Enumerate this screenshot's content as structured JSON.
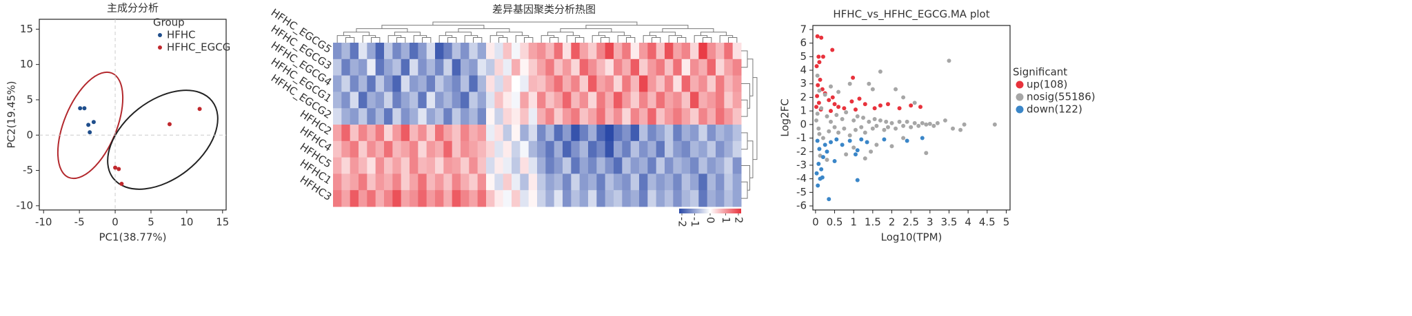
{
  "chart_data": [
    {
      "type": "scatter",
      "title": "主成分分析",
      "xlabel": "PC1(38.77%)",
      "ylabel": "PC2(19.45%)",
      "xlim": [
        -10.6,
        15.5
      ],
      "ylim": [
        -10.6,
        16.4
      ],
      "xticks": [
        -10,
        -5,
        0,
        5,
        10,
        15
      ],
      "yticks": [
        -10,
        -5,
        0,
        5,
        10,
        15
      ],
      "zero_lines": true,
      "legend": "upper right",
      "legend_title": "Group",
      "series": [
        {
          "name": "HFHC",
          "color": "#1f4e8c",
          "x": [
            -4.9,
            -4.3,
            -3.0,
            -3.75,
            -3.55
          ],
          "y": [
            3.8,
            3.8,
            1.85,
            1.45,
            0.4
          ]
        },
        {
          "name": "HFHC_EGCG",
          "color": "#c0282d",
          "x": [
            11.8,
            7.6,
            0.0,
            0.5,
            0.9
          ],
          "y": [
            3.7,
            1.55,
            -4.6,
            -4.8,
            -6.9
          ]
        }
      ]
    },
    {
      "type": "heatmap",
      "title": "差异基因聚类分析热图",
      "rows": [
        "HFHC_EGCG5",
        "HFHC_EGCG3",
        "HFHC_EGCG4",
        "HFHC_EGCG1",
        "HFHC_EGCG2",
        "HFHC2",
        "HFHC4",
        "HFHC5",
        "HFHC1",
        "HFHC3"
      ],
      "zlim": [
        -2,
        2
      ],
      "cticks": [
        -2,
        -1,
        0,
        1,
        2
      ],
      "colors": [
        "#2b4aa8",
        "#ffffff",
        "#e8323c"
      ],
      "matrix": [
        [
          -1.2,
          -0.8,
          -1.5,
          -0.3,
          -1.0,
          -1.7,
          -0.6,
          -1.3,
          -0.9,
          -1.6,
          -1.1,
          -0.4,
          -1.8,
          -1.4,
          -0.7,
          -1.2,
          -0.5,
          -1.0,
          0.2,
          -0.3,
          0.6,
          -0.1,
          0.4,
          0.9,
          1.1,
          0.7,
          1.4,
          0.3,
          1.6,
          0.9,
          0.5,
          1.2,
          1.8,
          0.8,
          1.3,
          0.2,
          1.0,
          1.5,
          0.6,
          1.7,
          0.9,
          1.2,
          0.4,
          1.9,
          1.1,
          0.7,
          1.4,
          0.3
        ],
        [
          -0.6,
          -1.4,
          -0.9,
          -1.1,
          -0.2,
          -1.5,
          -1.0,
          -0.7,
          -1.6,
          -0.4,
          -1.2,
          -0.8,
          -1.3,
          -0.5,
          -1.7,
          -0.9,
          -1.1,
          -0.3,
          -0.6,
          0.4,
          -0.2,
          0.8,
          0.1,
          0.5,
          0.9,
          1.3,
          0.6,
          1.0,
          0.4,
          1.5,
          1.1,
          0.7,
          0.3,
          1.2,
          0.8,
          1.6,
          0.5,
          1.0,
          1.3,
          0.6,
          1.4,
          0.2,
          1.1,
          0.8,
          1.5,
          0.4,
          0.9,
          1.2
        ],
        [
          -1.0,
          -0.5,
          -1.3,
          -0.8,
          -1.5,
          -0.6,
          -1.2,
          -1.7,
          -0.4,
          -1.1,
          -0.9,
          -1.4,
          -0.6,
          -1.0,
          -1.3,
          -0.7,
          -1.6,
          -0.8,
          0.3,
          -0.4,
          0.5,
          0.0,
          -0.2,
          0.7,
          0.6,
          1.0,
          1.4,
          0.8,
          1.2,
          0.5,
          1.6,
          0.9,
          1.1,
          0.4,
          1.3,
          0.7,
          1.8,
          1.0,
          0.6,
          1.2,
          0.3,
          1.5,
          0.8,
          1.1,
          0.5,
          1.3,
          0.7,
          1.0
        ],
        [
          -0.8,
          -1.2,
          -0.4,
          -1.6,
          -0.9,
          -1.1,
          -0.5,
          -1.4,
          -1.0,
          -0.7,
          -1.5,
          -0.3,
          -1.1,
          -0.8,
          -1.2,
          -1.6,
          -0.6,
          -1.0,
          -0.3,
          0.6,
          0.2,
          -0.1,
          0.9,
          0.3,
          1.2,
          0.6,
          0.9,
          1.5,
          0.7,
          1.1,
          0.4,
          1.3,
          0.8,
          1.6,
          1.0,
          0.5,
          1.2,
          0.7,
          1.4,
          0.9,
          1.1,
          0.6,
          1.7,
          0.8,
          1.0,
          1.3,
          0.5,
          0.9
        ],
        [
          -0.4,
          -0.9,
          -1.1,
          -0.6,
          -1.3,
          -0.8,
          -1.5,
          -0.5,
          -1.2,
          -0.9,
          -0.3,
          -1.0,
          -0.7,
          -1.4,
          -0.6,
          -1.1,
          -0.8,
          -1.3,
          0.1,
          -0.5,
          0.4,
          0.2,
          0.6,
          -0.2,
          0.8,
          1.2,
          0.5,
          1.0,
          1.3,
          0.6,
          0.9,
          1.4,
          0.7,
          1.1,
          0.4,
          1.2,
          0.8,
          1.5,
          0.6,
          1.0,
          1.3,
          0.9,
          0.5,
          1.2,
          0.8,
          1.4,
          1.0,
          0.6
        ],
        [
          0.9,
          1.5,
          0.6,
          1.2,
          0.8,
          1.3,
          0.4,
          1.0,
          1.6,
          0.7,
          1.1,
          0.5,
          1.4,
          0.9,
          0.6,
          1.2,
          0.8,
          1.0,
          -0.2,
          0.3,
          -0.6,
          0.1,
          -0.9,
          -0.4,
          -1.3,
          -0.8,
          -1.6,
          -1.1,
          -1.9,
          -1.4,
          -0.9,
          -1.7,
          -2.0,
          -1.5,
          -1.2,
          -1.8,
          -0.7,
          -1.3,
          -1.0,
          -0.6,
          -1.4,
          -0.9,
          -1.1,
          -0.5,
          -1.2,
          -0.8,
          -1.0,
          -0.7
        ],
        [
          0.6,
          1.0,
          1.3,
          0.5,
          1.1,
          0.8,
          1.4,
          0.7,
          0.9,
          1.2,
          0.4,
          1.0,
          0.8,
          1.5,
          0.6,
          1.1,
          0.9,
          0.7,
          0.4,
          -0.3,
          0.2,
          -0.5,
          -0.1,
          -0.8,
          -1.1,
          -1.5,
          -0.9,
          -1.7,
          -1.2,
          -0.8,
          -1.6,
          -1.3,
          -1.9,
          -1.0,
          -1.4,
          -0.7,
          -1.2,
          -0.9,
          -1.5,
          -0.6,
          -1.1,
          -1.3,
          -0.8,
          -1.0,
          -0.6,
          -1.2,
          -0.9,
          -0.5
        ],
        [
          0.8,
          0.4,
          1.0,
          0.7,
          0.3,
          1.1,
          0.6,
          0.9,
          0.5,
          1.2,
          0.7,
          0.8,
          0.4,
          1.0,
          0.9,
          0.5,
          1.1,
          0.6,
          -0.4,
          0.2,
          -0.2,
          -0.6,
          0.3,
          -0.3,
          -0.9,
          -1.4,
          -1.1,
          -0.6,
          -1.5,
          -1.0,
          -1.3,
          -0.8,
          -1.2,
          -1.6,
          -0.7,
          -1.1,
          -0.9,
          -1.4,
          -0.6,
          -1.2,
          -0.8,
          -1.0,
          -1.3,
          -0.7,
          -1.1,
          -0.9,
          -0.5,
          -1.2
        ],
        [
          1.1,
          0.7,
          0.9,
          1.3,
          0.6,
          1.0,
          0.8,
          1.2,
          0.5,
          0.9,
          1.4,
          0.7,
          1.0,
          0.6,
          1.2,
          0.8,
          0.5,
          1.1,
          0.1,
          -0.4,
          0.5,
          -0.2,
          -0.7,
          0.2,
          -0.6,
          -1.0,
          -0.8,
          -1.3,
          -0.5,
          -1.1,
          -0.9,
          -1.4,
          -0.7,
          -1.0,
          -1.2,
          -0.6,
          -1.5,
          -0.8,
          -1.1,
          -0.9,
          -1.3,
          -0.7,
          -1.0,
          -1.6,
          -0.8,
          -1.2,
          -0.6,
          -1.0
        ],
        [
          1.3,
          0.9,
          1.6,
          1.0,
          1.4,
          0.8,
          1.2,
          1.7,
          0.9,
          1.1,
          1.5,
          1.0,
          1.3,
          0.8,
          1.6,
          1.2,
          0.9,
          1.4,
          0.6,
          0.2,
          -0.1,
          0.5,
          -0.3,
          0.1,
          -0.5,
          -0.9,
          -0.3,
          -1.2,
          -0.7,
          -1.0,
          -0.4,
          -1.3,
          -0.8,
          -0.6,
          -1.1,
          -0.9,
          -1.4,
          -0.5,
          -1.0,
          -0.7,
          -1.2,
          -0.8,
          -0.6,
          -1.5,
          -0.9,
          -1.1,
          -0.7,
          -1.0
        ]
      ]
    },
    {
      "type": "scatter",
      "title": "HFHC_vs_HFHC_EGCG.MA plot",
      "xlabel": "Log10(TPM)",
      "ylabel": "Log2FC",
      "xlim": [
        -0.07,
        5.1
      ],
      "ylim": [
        -6.3,
        7.3
      ],
      "xticks": [
        0,
        0.5,
        1,
        1.5,
        2,
        2.5,
        3,
        3.5,
        4,
        4.5,
        5
      ],
      "yticks": [
        -6,
        -5,
        -4,
        -3,
        -2,
        -1,
        0,
        1,
        2,
        3,
        4,
        5,
        6,
        7
      ],
      "zero_lines": false,
      "legend": "outside right",
      "legend_title": "Significant",
      "series": [
        {
          "name": "up(108)",
          "color": "#e8323c",
          "x": [
            0.05,
            0.15,
            0.08,
            0.2,
            0.1,
            0.03,
            0.44,
            0.12,
            0.06,
            0.18,
            0.25,
            0.04,
            0.35,
            0.09,
            0.5,
            0.6,
            0.75,
            0.95,
            1.15,
            1.3,
            1.55,
            1.7,
            1.9,
            2.2,
            2.5,
            2.75,
            0.45,
            0.98,
            0.14,
            0.02,
            1.05,
            0.4
          ],
          "y": [
            6.5,
            6.4,
            5.0,
            5.0,
            4.6,
            4.3,
            5.5,
            3.3,
            2.9,
            2.6,
            2.3,
            2.1,
            1.8,
            1.6,
            1.5,
            1.3,
            1.2,
            1.7,
            1.9,
            1.5,
            1.2,
            1.4,
            1.5,
            1.2,
            1.4,
            1.3,
            2.0,
            3.45,
            1.1,
            1.3,
            1.1,
            1.0
          ]
        },
        {
          "name": "nosig(55186)",
          "color": "#a6a6a6",
          "x": [
            0.05,
            0.1,
            0.02,
            0.15,
            0.2,
            0.08,
            0.3,
            0.35,
            0.4,
            0.5,
            0.55,
            0.6,
            0.7,
            0.75,
            0.8,
            0.9,
            1.0,
            1.05,
            1.1,
            1.2,
            1.25,
            1.3,
            1.4,
            1.5,
            1.55,
            1.6,
            1.7,
            1.8,
            1.85,
            1.9,
            2.0,
            2.1,
            2.2,
            2.3,
            2.4,
            2.5,
            2.6,
            2.7,
            2.8,
            2.9,
            3.0,
            3.1,
            3.2,
            0.25,
            0.4,
            0.6,
            0.9,
            1.4,
            1.5,
            1.7,
            2.1,
            2.3,
            2.6,
            3.5,
            0.8,
            1.0,
            1.3,
            1.6,
            2.0,
            2.9,
            2.3,
            3.4,
            3.6,
            3.8,
            3.9,
            4.7,
            0.1,
            0.12,
            0.05,
            0.3,
            1.45
          ],
          "y": [
            0.8,
            -0.7,
            0.3,
            1.2,
            -1.0,
            -0.3,
            0.6,
            -0.5,
            0.2,
            -0.2,
            0.7,
            -0.6,
            0.4,
            -0.3,
            0.9,
            -0.8,
            0.3,
            -0.4,
            0.6,
            -0.2,
            0.5,
            -0.6,
            0.2,
            -0.3,
            0.4,
            -0.1,
            0.3,
            -0.4,
            0.2,
            -0.2,
            0.1,
            -0.3,
            0.2,
            -0.1,
            0.2,
            -0.2,
            0.1,
            -0.1,
            0.1,
            0.0,
            0.05,
            -0.1,
            0.1,
            2.2,
            2.8,
            2.4,
            3.0,
            3.0,
            2.6,
            3.9,
            2.6,
            2.0,
            1.6,
            4.7,
            -2.2,
            -1.7,
            -2.5,
            -1.5,
            -1.6,
            -2.1,
            -1.0,
            0.3,
            -0.3,
            -0.4,
            0.0,
            0.0,
            2.5,
            -2.3,
            3.6,
            -2.6,
            -2.0
          ]
        },
        {
          "name": "down(122)",
          "color": "#3a86c8",
          "x": [
            0.05,
            0.1,
            0.2,
            0.08,
            0.15,
            0.03,
            0.12,
            0.06,
            0.25,
            0.4,
            0.55,
            0.7,
            0.9,
            1.2,
            1.35,
            0.3,
            0.5,
            0.35,
            1.1,
            1.05,
            1.8,
            2.4,
            2.8,
            1.1,
            0.18
          ],
          "y": [
            -1.2,
            -1.8,
            -2.4,
            -2.9,
            -3.3,
            -3.6,
            -4.0,
            -4.5,
            -1.5,
            -1.3,
            -1.1,
            -1.5,
            -1.2,
            -1.1,
            -1.3,
            -2.0,
            -2.7,
            -5.5,
            -1.9,
            -2.2,
            -1.1,
            -1.2,
            -1.0,
            -4.1,
            -3.9
          ]
        }
      ]
    }
  ]
}
